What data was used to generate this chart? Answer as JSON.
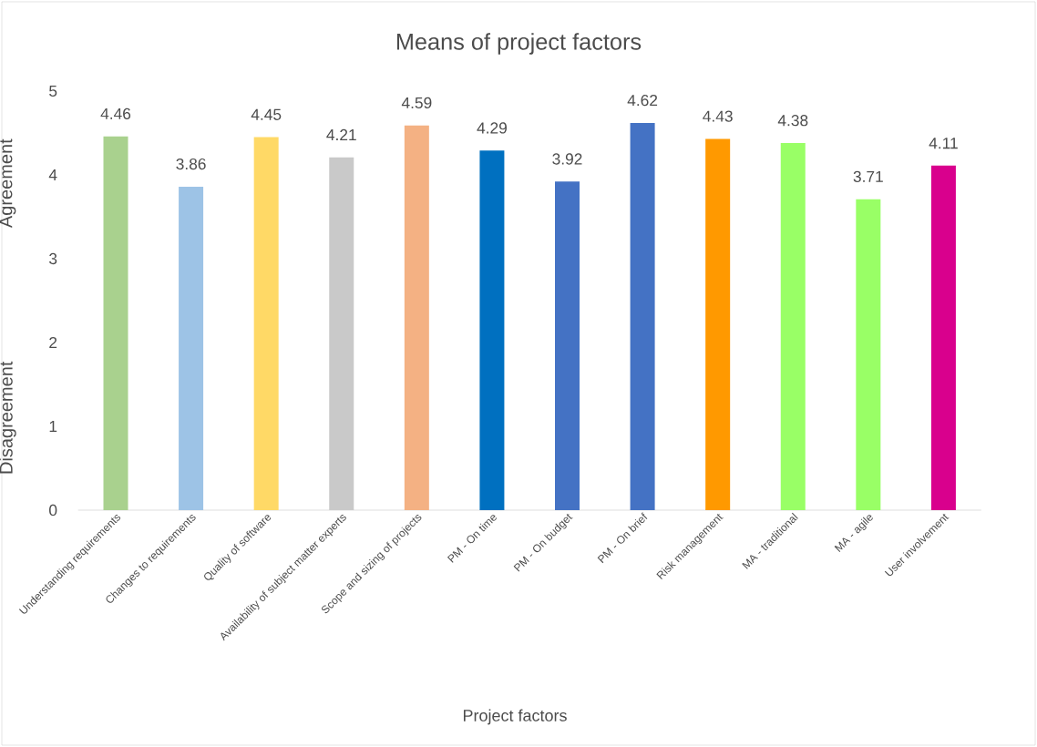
{
  "chart_data": {
    "type": "bar",
    "title": "Means of project factors",
    "xlabel": "Project factors",
    "ylabel": "Agreement",
    "annotations": [
      "Disagreement"
    ],
    "categories": [
      "Understanding requirements",
      "Changes to requirements",
      "Quality of software",
      "Availability of subject matter experts",
      "Scope and sizing of projects",
      "PM - On time",
      "PM - On budget",
      "PM - On brief",
      "Risk management",
      "MA - traditional",
      "MA - agile",
      "User involvement"
    ],
    "values": [
      4.46,
      3.86,
      4.45,
      4.21,
      4.59,
      4.29,
      3.92,
      4.62,
      4.43,
      4.38,
      3.71,
      4.11
    ],
    "colors": [
      "#a9d18e",
      "#9dc3e6",
      "#ffd966",
      "#c9c9c9",
      "#f4b183",
      "#0070c0",
      "#4472c4",
      "#4472c4",
      "#ff9900",
      "#99ff66",
      "#99ff66",
      "#d9008d"
    ],
    "ylim": [
      0,
      5
    ],
    "yticks": [
      0,
      1,
      2,
      3,
      4,
      5
    ],
    "data_labels": true,
    "grid": false
  }
}
